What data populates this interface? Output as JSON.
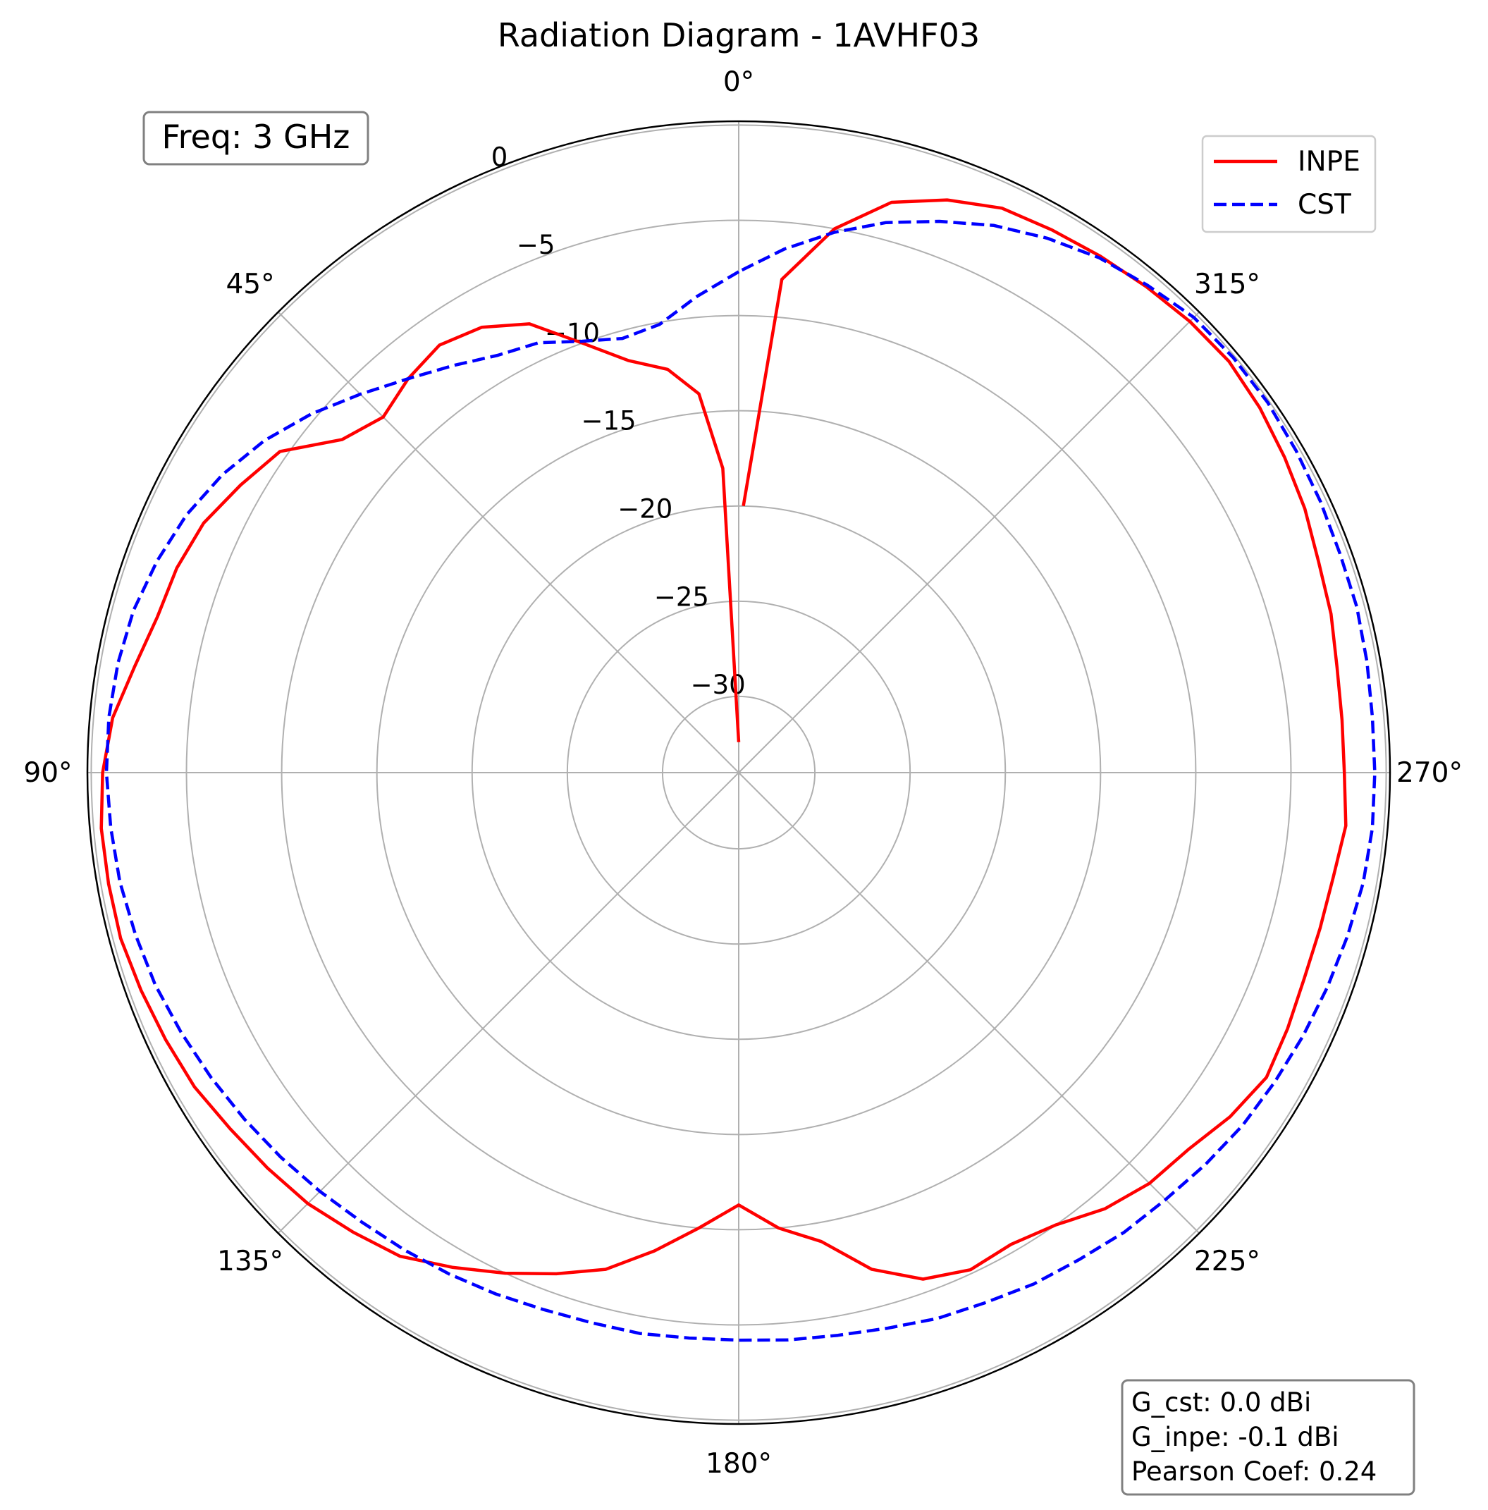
{
  "chart_data": {
    "type": "line",
    "subtype": "polar",
    "title": "Radiation Diagram - 1AVHF03",
    "theta_direction": "counterclockwise",
    "theta_zero": "top",
    "angle_ticks": [
      {
        "deg": 0,
        "label": "0°"
      },
      {
        "deg": 45,
        "label": "45°"
      },
      {
        "deg": 90,
        "label": "90°"
      },
      {
        "deg": 135,
        "label": "135°"
      },
      {
        "deg": 180,
        "label": "180°"
      },
      {
        "deg": 225,
        "label": "225°"
      },
      {
        "deg": 270,
        "label": "270°"
      },
      {
        "deg": 315,
        "label": "315°"
      }
    ],
    "radial_ticks": [
      {
        "value": 0,
        "label": "0"
      },
      {
        "value": -5,
        "label": "−5"
      },
      {
        "value": -10,
        "label": "−10"
      },
      {
        "value": -15,
        "label": "−15"
      },
      {
        "value": -20,
        "label": "−20"
      },
      {
        "value": -25,
        "label": "−25"
      },
      {
        "value": -30,
        "label": "−30"
      }
    ],
    "rlim": [
      -34,
      0.2
    ],
    "grid": true,
    "legend_position": "top-right",
    "series": [
      {
        "name": "INPE",
        "color": "#ff0000",
        "style": "solid",
        "theta_deg": [
          0,
          3,
          6,
          10,
          15,
          20,
          25,
          30,
          35,
          40,
          45,
          50,
          55,
          60,
          65,
          70,
          75,
          80,
          85,
          90,
          95,
          100,
          105,
          110,
          115,
          120,
          125,
          130,
          135,
          140,
          145,
          150,
          155,
          160,
          165,
          170,
          175,
          180,
          185,
          190,
          195,
          200,
          205,
          210,
          215,
          220,
          225,
          230,
          235,
          240,
          245,
          250,
          255,
          260,
          265,
          270,
          275,
          280,
          285,
          290,
          295,
          300,
          305,
          310,
          315,
          320,
          325,
          330,
          335,
          340,
          345,
          350,
          355,
          359
        ],
        "r_db": [
          -32.4,
          -18.0,
          -14.0,
          -12.5,
          -11.6,
          -10.0,
          -8.0,
          -7.0,
          -6.6,
          -7.0,
          -7.6,
          -6.8,
          -4.6,
          -3.8,
          -3.0,
          -2.6,
          -2.4,
          -1.8,
          -1.0,
          -0.6,
          -0.4,
          -0.4,
          -0.4,
          -0.6,
          -0.8,
          -1.0,
          -1.4,
          -1.7,
          -2.0,
          -2.5,
          -3.0,
          -4.0,
          -5.0,
          -6.0,
          -7.0,
          -8.5,
          -10.0,
          -11.3,
          -10.0,
          -9.0,
          -7.0,
          -5.7,
          -5.2,
          -5.4,
          -5.0,
          -4.1,
          -3.5,
          -3.2,
          -2.5,
          -2.0,
          -2.2,
          -2.4,
          -2.4,
          -2.3,
          -2.0,
          -2.2,
          -2.2,
          -2.1,
          -1.8,
          -1.6,
          -1.2,
          -0.9,
          -0.6,
          -0.4,
          -0.5,
          -0.7,
          -0.9,
          -1.1,
          -1.3,
          -2.0,
          -3.0,
          -5.0,
          -8.0,
          -20.0
        ]
      },
      {
        "name": "CST",
        "color": "#0000ff",
        "style": "dashed",
        "theta_deg": [
          0,
          5,
          10,
          15,
          20,
          25,
          30,
          35,
          40,
          45,
          50,
          55,
          60,
          65,
          70,
          75,
          80,
          85,
          90,
          95,
          100,
          105,
          110,
          115,
          120,
          125,
          130,
          135,
          140,
          145,
          150,
          155,
          160,
          165,
          170,
          175,
          180,
          185,
          190,
          195,
          200,
          205,
          210,
          215,
          220,
          225,
          230,
          235,
          240,
          245,
          250,
          255,
          260,
          265,
          270,
          275,
          280,
          285,
          290,
          295,
          300,
          305,
          310,
          315,
          320,
          325,
          330,
          335,
          340,
          345,
          350,
          355
        ],
        "r_db": [
          -7.7,
          -8.9,
          -10.1,
          -10.4,
          -9.9,
          -9.1,
          -8.7,
          -7.9,
          -7.0,
          -5.9,
          -4.7,
          -3.6,
          -2.7,
          -2.0,
          -1.5,
          -1.1,
          -0.9,
          -0.8,
          -0.8,
          -0.9,
          -1.0,
          -1.2,
          -1.4,
          -1.7,
          -2.0,
          -2.3,
          -2.6,
          -2.9,
          -3.2,
          -3.4,
          -3.6,
          -3.8,
          -4.0,
          -4.1,
          -4.1,
          -4.2,
          -4.2,
          -4.1,
          -4.0,
          -3.8,
          -3.5,
          -3.3,
          -3.0,
          -2.8,
          -2.5,
          -2.3,
          -2.0,
          -1.7,
          -1.5,
          -1.3,
          -1.1,
          -0.9,
          -0.7,
          -0.6,
          -0.6,
          -0.6,
          -0.5,
          -0.4,
          -0.4,
          -0.3,
          -0.2,
          -0.1,
          -0.1,
          -0.2,
          -0.6,
          -1.0,
          -1.6,
          -2.3,
          -3.2,
          -4.1,
          -5.2,
          -6.4
        ]
      }
    ]
  },
  "freq_box": {
    "label": "Freq: 3 GHz"
  },
  "stats_box": {
    "g_cst": "G_cst: 0.0 dBi",
    "g_inpe": "G_inpe: -0.1 dBi",
    "pearson": "Pearson Coef: 0.24"
  }
}
